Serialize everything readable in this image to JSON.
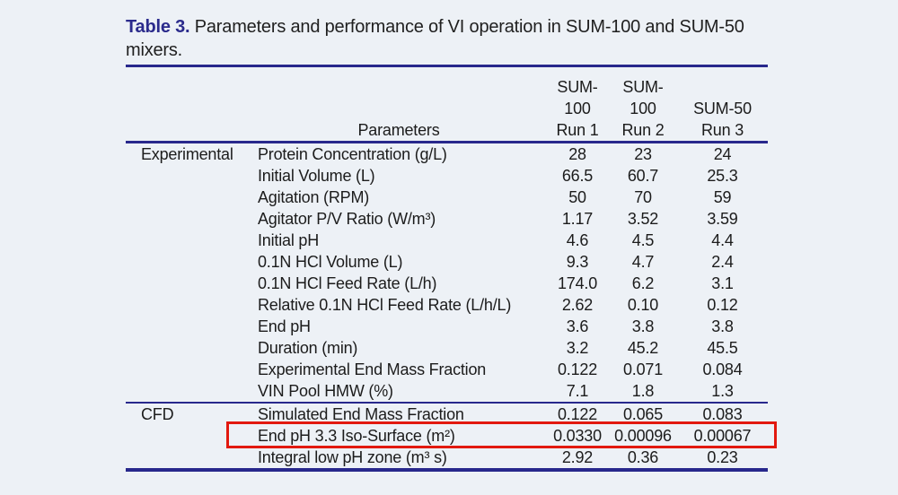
{
  "page": {
    "background_color": "#edf1f6",
    "rule_color": "#28288c",
    "text_color": "#1c1c1c",
    "highlight_box_color": "#e2190f",
    "caption_label_color": "#2b2b8c"
  },
  "title": {
    "caption_label": "Table 3.",
    "line1_rest": " Parameters and performance of VI operation in SUM-100 and SUM-50",
    "line2": "mixers."
  },
  "table": {
    "header": {
      "parameters_label": "Parameters",
      "run_columns": [
        {
          "line1": "SUM-",
          "line2": "100",
          "line3": "Run 1"
        },
        {
          "line1": "SUM-",
          "line2": "100",
          "line3": "Run 2"
        },
        {
          "line1": "",
          "line2": "SUM-50",
          "line3": "Run 3"
        }
      ]
    },
    "sections": [
      {
        "label": "Experimental",
        "rows": [
          {
            "parameter": "Protein Concentration (g/L)",
            "run1": "28",
            "run2": "23",
            "run3": "24"
          },
          {
            "parameter": "Initial Volume (L)",
            "run1": "66.5",
            "run2": "60.7",
            "run3": "25.3"
          },
          {
            "parameter": "Agitation (RPM)",
            "run1": "50",
            "run2": "70",
            "run3": "59"
          },
          {
            "parameter": "Agitator P/V Ratio (W/m³)",
            "run1": "1.17",
            "run2": "3.52",
            "run3": "3.59"
          },
          {
            "parameter": "Initial pH",
            "run1": "4.6",
            "run2": "4.5",
            "run3": "4.4"
          },
          {
            "parameter": "0.1N HCl Volume (L)",
            "run1": "9.3",
            "run2": "4.7",
            "run3": "2.4"
          },
          {
            "parameter": "0.1N HCl Feed Rate (L/h)",
            "run1": "174.0",
            "run2": "6.2",
            "run3": "3.1"
          },
          {
            "parameter": "Relative 0.1N HCl Feed Rate (L/h/L)",
            "run1": "2.62",
            "run2": "0.10",
            "run3": "0.12"
          },
          {
            "parameter": "End pH",
            "run1": "3.6",
            "run2": "3.8",
            "run3": "3.8"
          },
          {
            "parameter": "Duration (min)",
            "run1": "3.2",
            "run2": "45.2",
            "run3": "45.5"
          },
          {
            "parameter": "Experimental End Mass Fraction",
            "run1": "0.122",
            "run2": "0.071",
            "run3": "0.084"
          },
          {
            "parameter": "VIN Pool HMW (%)",
            "run1": "7.1",
            "run2": "1.8",
            "run3": "1.3"
          }
        ]
      },
      {
        "label": "CFD",
        "rows": [
          {
            "parameter": "Simulated End Mass Fraction",
            "run1": "0.122",
            "run2": "0.065",
            "run3": "0.083"
          },
          {
            "parameter": "End pH 3.3 Iso-Surface (m²)",
            "run1": "0.0330",
            "run2": "0.00096",
            "run3": "0.00067"
          },
          {
            "parameter": "Integral low pH zone (m³ s)",
            "run1": "2.92",
            "run2": "0.36",
            "run3": "0.23"
          }
        ]
      }
    ],
    "highlighted_row": "End pH 3.3 Iso-Surface (m²)"
  }
}
